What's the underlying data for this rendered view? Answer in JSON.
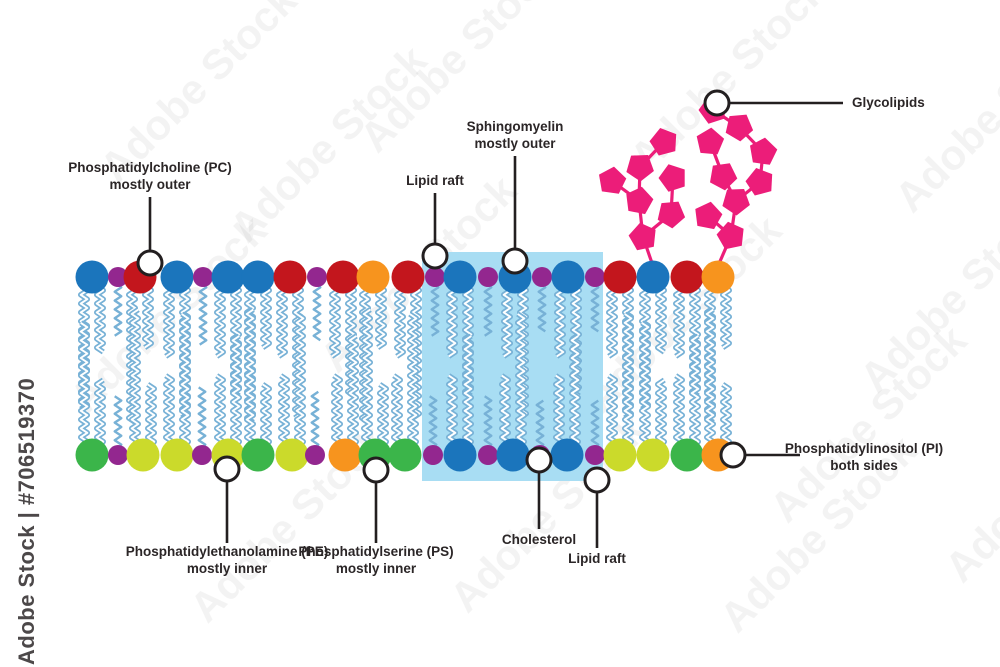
{
  "watermark": {
    "vertical_text": "Adobe Stock | #706519370",
    "tile_text": "Adobe Stock"
  },
  "colors": {
    "blue": "#1b75bc",
    "red": "#c3161d",
    "purple": "#93278f",
    "orange": "#f7941e",
    "green": "#3bb54a",
    "yellow": "#cbda2b",
    "tail": "#77b1d6",
    "raft": "#a8ddf3",
    "pink": "#ec1d79",
    "label_ink": "#2b2627"
  },
  "labels": {
    "pc": {
      "line1": "Phosphatidylcholine (PC)",
      "line2": "mostly outer"
    },
    "lipid_raft_top": {
      "line1": "Lipid raft"
    },
    "sphingomyelin": {
      "line1": "Sphingomyelin",
      "line2": "mostly outer"
    },
    "glycolipids": {
      "line1": "Glycolipids"
    },
    "pi": {
      "line1": "Phosphatidylinositol (PI)",
      "line2": "both sides"
    },
    "pe": {
      "line1": "Phosphatidylethanolamine (PE)",
      "line2": "mostly inner"
    },
    "ps": {
      "line1": "Phosphatidylserine (PS)",
      "line2": "mostly inner"
    },
    "cholesterol": {
      "line1": "Cholesterol"
    },
    "lipid_raft_bottom": {
      "line1": "Lipid raft"
    }
  },
  "membrane": {
    "outer_leaflet": [
      "blue",
      "purple",
      "red",
      "blue",
      "purple",
      "blue",
      "blue",
      "red",
      "purple",
      "red",
      "orange",
      "red",
      "purple",
      "blue",
      "purple",
      "blue",
      "purple",
      "blue",
      "purple",
      "red",
      "blue",
      "red",
      "orange"
    ],
    "inner_leaflet": [
      "green",
      "purple",
      "yellow",
      "yellow",
      "purple",
      "yellow",
      "green",
      "yellow",
      "purple",
      "orange",
      "green",
      "green",
      "purple",
      "blue",
      "purple",
      "blue",
      "purple",
      "blue",
      "purple",
      "yellow",
      "yellow",
      "green",
      "orange"
    ],
    "glycolipid_trees": 2
  }
}
